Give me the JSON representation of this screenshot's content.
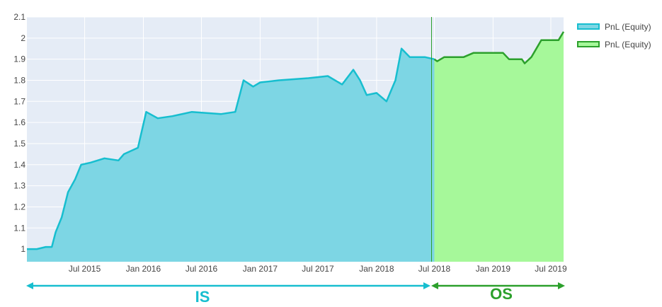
{
  "chart_data": {
    "type": "area",
    "ylim": [
      0.94,
      2.1
    ],
    "grid": true,
    "legend_position": "top-right",
    "x_tick_labels": [
      "Jul 2015",
      "Jan 2016",
      "Jul 2016",
      "Jan 2017",
      "Jul 2017",
      "Jan 2018",
      "Jul 2018",
      "Jan 2019",
      "Jul 2019"
    ],
    "y_ticks": [
      1,
      1.1,
      1.2,
      1.3,
      1.4,
      1.5,
      1.6,
      1.7,
      1.8,
      1.9,
      2,
      2.1
    ],
    "y_tick_labels": [
      "1",
      "1.1",
      "1.2",
      "1.3",
      "1.4",
      "1.5",
      "1.6",
      "1.7",
      "1.8",
      "1.9",
      "2",
      "2.1"
    ],
    "series": [
      {
        "name": "PnL (Equity)",
        "line_color": "#17becf",
        "fill_color": "#7dd6e4",
        "points": [
          [
            "2015-01-01",
            1.0
          ],
          [
            "2015-02-01",
            1.0
          ],
          [
            "2015-03-01",
            1.01
          ],
          [
            "2015-03-20",
            1.01
          ],
          [
            "2015-04-01",
            1.08
          ],
          [
            "2015-04-20",
            1.15
          ],
          [
            "2015-05-10",
            1.27
          ],
          [
            "2015-06-01",
            1.33
          ],
          [
            "2015-06-20",
            1.4
          ],
          [
            "2015-07-20",
            1.41
          ],
          [
            "2015-09-01",
            1.43
          ],
          [
            "2015-10-15",
            1.42
          ],
          [
            "2015-11-01",
            1.45
          ],
          [
            "2015-12-15",
            1.48
          ],
          [
            "2016-01-10",
            1.65
          ],
          [
            "2016-02-15",
            1.62
          ],
          [
            "2016-04-01",
            1.63
          ],
          [
            "2016-06-01",
            1.65
          ],
          [
            "2016-09-01",
            1.64
          ],
          [
            "2016-10-15",
            1.65
          ],
          [
            "2016-11-10",
            1.8
          ],
          [
            "2016-12-10",
            1.77
          ],
          [
            "2017-01-01",
            1.79
          ],
          [
            "2017-03-01",
            1.8
          ],
          [
            "2017-06-01",
            1.81
          ],
          [
            "2017-08-01",
            1.82
          ],
          [
            "2017-09-15",
            1.78
          ],
          [
            "2017-10-20",
            1.85
          ],
          [
            "2017-11-10",
            1.8
          ],
          [
            "2017-12-01",
            1.73
          ],
          [
            "2018-01-01",
            1.74
          ],
          [
            "2018-02-01",
            1.7
          ],
          [
            "2018-03-01",
            1.8
          ],
          [
            "2018-03-20",
            1.95
          ],
          [
            "2018-04-15",
            1.91
          ],
          [
            "2018-06-01",
            1.91
          ],
          [
            "2018-07-01",
            1.9
          ]
        ]
      },
      {
        "name": "PnL (Equity)",
        "line_color": "#2ca02c",
        "fill_color": "#a6f89a",
        "points": [
          [
            "2018-07-01",
            1.9
          ],
          [
            "2018-07-10",
            1.89
          ],
          [
            "2018-08-01",
            1.91
          ],
          [
            "2018-10-01",
            1.91
          ],
          [
            "2018-11-01",
            1.93
          ],
          [
            "2019-01-01",
            1.93
          ],
          [
            "2019-02-01",
            1.93
          ],
          [
            "2019-02-20",
            1.9
          ],
          [
            "2019-04-01",
            1.9
          ],
          [
            "2019-04-10",
            1.88
          ],
          [
            "2019-05-01",
            1.91
          ],
          [
            "2019-06-01",
            1.99
          ],
          [
            "2019-07-25",
            1.99
          ],
          [
            "2019-08-10",
            2.03
          ]
        ]
      }
    ]
  },
  "segments": [
    {
      "label": "IS",
      "color": "#17becf"
    },
    {
      "label": "OS",
      "color": "#2ca02c"
    }
  ]
}
